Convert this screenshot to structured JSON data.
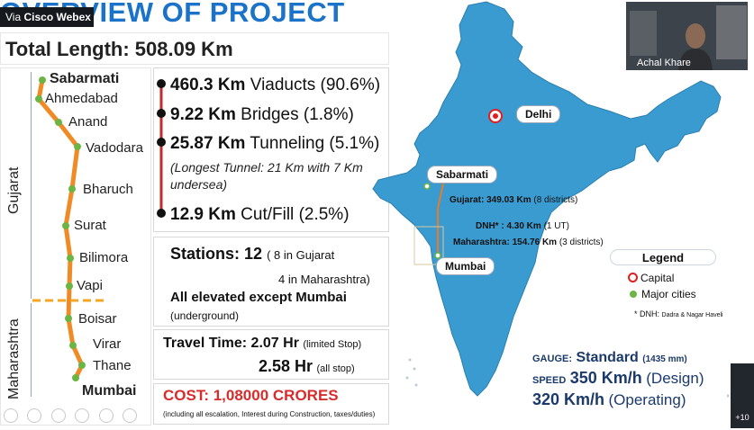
{
  "meeting": {
    "via_label": "Via",
    "app_name": "Cisco Webex",
    "participant_name": "Achal Khare",
    "extra_participants": "+10"
  },
  "slide": {
    "title": "OVERVIEW OF PROJECT",
    "total_length": "Total Length: 508.09 Km",
    "route": {
      "regions": [
        "Gujarat",
        "Maharashtra"
      ],
      "cities": [
        "Sabarmati",
        "Ahmedabad",
        "Anand",
        "Vadodara",
        "Bharuch",
        "Surat",
        "Bilimora",
        "Vapi",
        "Boisar",
        "Virar",
        "Thane",
        "Mumbai"
      ]
    },
    "stats": [
      {
        "value": "460.3 Km",
        "label": "Viaducts",
        "pct": "(90.6%)"
      },
      {
        "value": "9.22 Km",
        "label": "Bridges",
        "pct": "(1.8%)"
      },
      {
        "value": "25.87 Km",
        "label": "Tunneling",
        "pct": "(5.1%)"
      },
      {
        "value": "12.9 Km",
        "label": "Cut/Fill",
        "pct": "(2.5%)"
      }
    ],
    "tunnel_note": "(Longest Tunnel: 21 Km with 7 Km undersea)",
    "stations": {
      "label": "Stations:",
      "count": "12",
      "gujarat": "( 8 in Gujarat",
      "maharashtra": "4 in Maharashtra)",
      "elevated": "All elevated except Mumbai",
      "underground": "(underground)"
    },
    "travel": {
      "label": "Travel Time:",
      "limited_value": "2.07 Hr",
      "limited_note": "(limited Stop)",
      "all_value": "2.58 Hr",
      "all_note": "(all stop)"
    },
    "cost": {
      "label": "COST: 1,08000 CRORES",
      "note": "(including all escalation, Interest during Construction, taxes/duties)"
    },
    "map": {
      "capital_tag": "Delhi",
      "start_tag": "Sabarmati",
      "end_tag": "Mumbai",
      "gujarat_line": "Gujarat: 349.03 Km",
      "gujarat_sub": "(8 districts)",
      "dnh_line": "DNH* : 4.30 Km",
      "dnh_sub": "(1 UT)",
      "maha_line": "Maharashtra: 154.76 Km",
      "maha_sub": "(3 districts)",
      "legend_title": "Legend",
      "legend_capital": "Capital",
      "legend_cities": "Major cities",
      "dnh_footnote": "* DNH:",
      "dnh_full": "Dadra & Nagar Haveli",
      "map_color": "#3a9bd0"
    },
    "specs": {
      "gauge_label": "GAUGE:",
      "gauge_value": "Standard",
      "gauge_note": "(1435 mm)",
      "speed_label": "SPEED",
      "design_value": "350 Km/h",
      "design_note": "(Design)",
      "operating_value": "320 Km/h",
      "operating_note": "(Operating)"
    }
  }
}
